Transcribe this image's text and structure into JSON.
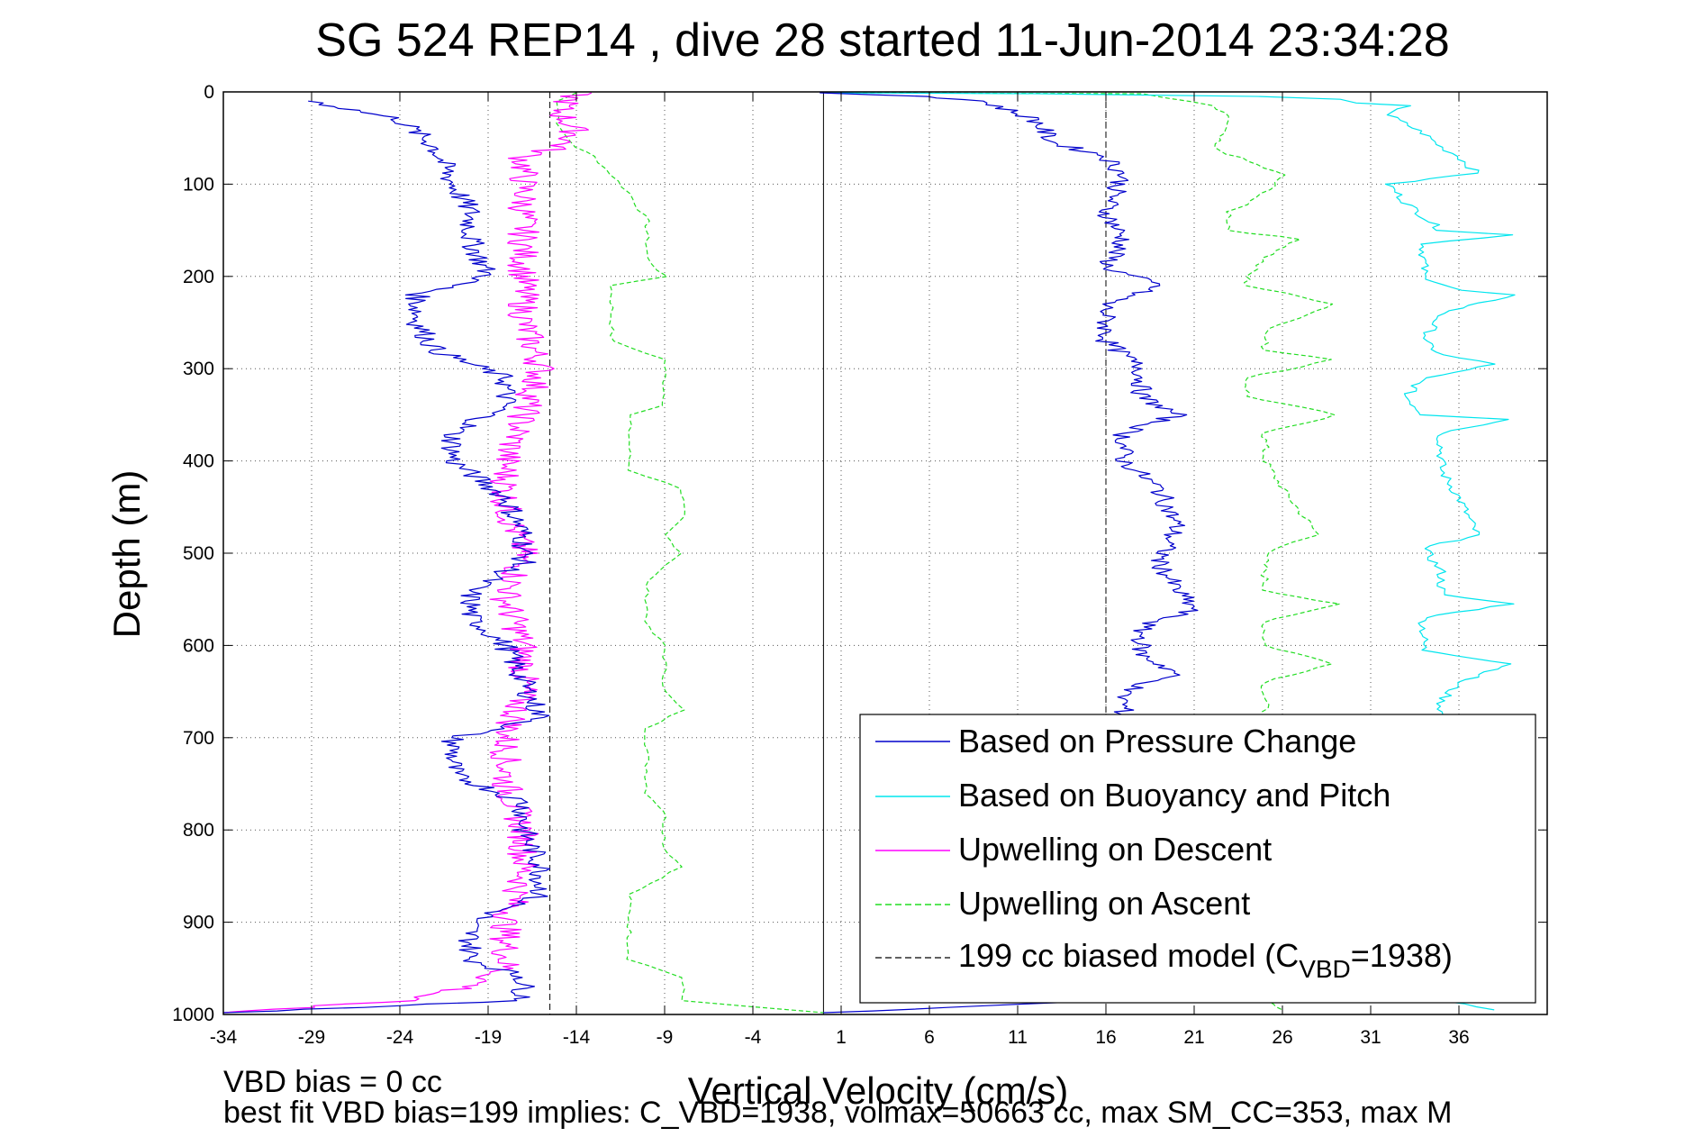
{
  "chart_data": {
    "type": "line",
    "title": "SG 524   REP14  , dive 28 started 11-Jun-2014 23:34:28",
    "xlabel": "Vertical Velocity (cm/s)",
    "ylabel": "Depth (m)",
    "xlim": [
      -34,
      41
    ],
    "ylim": [
      0,
      1000
    ],
    "y_reversed": true,
    "grid": true,
    "legend_position": "bottom-right",
    "xticks": [
      -34,
      -29,
      -24,
      -19,
      -14,
      -9,
      -4,
      1,
      6,
      11,
      16,
      21,
      26,
      31,
      36
    ],
    "xtick_labels": [
      "-34",
      "-29",
      "-24",
      "-19",
      "-14",
      "-9",
      "-4",
      "1",
      "6",
      "11",
      "16",
      "21",
      "26",
      "31",
      "36"
    ],
    "yticks": [
      0,
      100,
      200,
      300,
      400,
      500,
      600,
      700,
      800,
      900,
      1000
    ],
    "ytick_labels": [
      "0",
      "100",
      "200",
      "300",
      "400",
      "500",
      "600",
      "700",
      "800",
      "900",
      "1000"
    ],
    "zero_line_x": 0,
    "notes": [
      "VBD bias = 0 cc",
      "best fit VBD bias=199 implies: C_VBD=1938, volmax=50663 cc, max SM_CC=353, max M"
    ],
    "series": [
      {
        "name": "Based on Pressure Change",
        "color": "#0000cc",
        "style": "solid",
        "descent": [
          [
            -29,
            10
          ],
          [
            -24,
            30
          ],
          [
            -22,
            60
          ],
          [
            -21,
            100
          ],
          [
            -20,
            130
          ],
          [
            -20,
            160
          ],
          [
            -19,
            200
          ],
          [
            -23,
            220
          ],
          [
            -23,
            250
          ],
          [
            -22,
            280
          ],
          [
            -18,
            310
          ],
          [
            -18,
            340
          ],
          [
            -21,
            370
          ],
          [
            -21,
            400
          ],
          [
            -18,
            440
          ],
          [
            -17,
            480
          ],
          [
            -17,
            510
          ],
          [
            -20,
            540
          ],
          [
            -20,
            570
          ],
          [
            -18,
            600
          ],
          [
            -17,
            640
          ],
          [
            -16,
            680
          ],
          [
            -21,
            700
          ],
          [
            -21,
            740
          ],
          [
            -17,
            770
          ],
          [
            -17,
            800
          ],
          [
            -16,
            840
          ],
          [
            -16,
            870
          ],
          [
            -20,
            900
          ],
          [
            -20,
            940
          ],
          [
            -17,
            960
          ],
          [
            -17,
            985
          ],
          [
            -34,
            998
          ]
        ],
        "ascent": [
          [
            0,
            1
          ],
          [
            6,
            5
          ],
          [
            9,
            10
          ],
          [
            12,
            30
          ],
          [
            13,
            55
          ],
          [
            16,
            70
          ],
          [
            17,
            90
          ],
          [
            16,
            130
          ],
          [
            17,
            160
          ],
          [
            16,
            190
          ],
          [
            19,
            210
          ],
          [
            16,
            230
          ],
          [
            16,
            270
          ],
          [
            18,
            300
          ],
          [
            18,
            330
          ],
          [
            20,
            350
          ],
          [
            17,
            370
          ],
          [
            17,
            400
          ],
          [
            19,
            430
          ],
          [
            20,
            470
          ],
          [
            19,
            510
          ],
          [
            20,
            540
          ],
          [
            21,
            560
          ],
          [
            18,
            580
          ],
          [
            18,
            610
          ],
          [
            20,
            630
          ],
          [
            17,
            650
          ],
          [
            17,
            700
          ],
          [
            16,
            985
          ],
          [
            0,
            998
          ]
        ]
      },
      {
        "name": "Based on Buoyancy and Pitch",
        "color": "#00e5ee",
        "style": "solid",
        "ascent": [
          [
            0,
            1
          ],
          [
            12,
            2
          ],
          [
            25,
            5
          ],
          [
            29,
            8
          ],
          [
            30,
            12
          ],
          [
            33,
            15
          ],
          [
            32,
            25
          ],
          [
            34,
            45
          ],
          [
            35,
            60
          ],
          [
            36,
            70
          ],
          [
            37,
            88
          ],
          [
            32,
            100
          ],
          [
            33,
            120
          ],
          [
            35,
            150
          ],
          [
            39,
            155
          ],
          [
            34,
            165
          ],
          [
            34,
            200
          ],
          [
            36,
            215
          ],
          [
            39,
            220
          ],
          [
            35,
            240
          ],
          [
            34,
            270
          ],
          [
            35,
            285
          ],
          [
            38,
            295
          ],
          [
            34,
            310
          ],
          [
            33,
            330
          ],
          [
            34,
            350
          ],
          [
            39,
            355
          ],
          [
            35,
            370
          ],
          [
            35,
            410
          ],
          [
            36,
            440
          ],
          [
            37,
            480
          ],
          [
            34,
            495
          ],
          [
            35,
            520
          ],
          [
            35,
            545
          ],
          [
            39,
            555
          ],
          [
            34,
            570
          ],
          [
            34,
            605
          ],
          [
            39,
            620
          ],
          [
            36,
            640
          ],
          [
            35,
            660
          ],
          [
            35,
            985
          ],
          [
            38,
            995
          ]
        ]
      },
      {
        "name": "Upwelling on Descent",
        "color": "#ff00ff",
        "style": "solid",
        "descent": [
          [
            -14,
            1
          ],
          [
            -15,
            20
          ],
          [
            -14,
            45
          ],
          [
            -15,
            60
          ],
          [
            -17,
            70
          ],
          [
            -17,
            100
          ],
          [
            -17,
            150
          ],
          [
            -17,
            200
          ],
          [
            -17,
            250
          ],
          [
            -16,
            300
          ],
          [
            -17,
            350
          ],
          [
            -18,
            400
          ],
          [
            -18,
            450
          ],
          [
            -17,
            500
          ],
          [
            -18,
            550
          ],
          [
            -17,
            600
          ],
          [
            -17,
            650
          ],
          [
            -18,
            700
          ],
          [
            -18,
            750
          ],
          [
            -17,
            800
          ],
          [
            -17,
            850
          ],
          [
            -18,
            900
          ],
          [
            -18,
            950
          ],
          [
            -20,
            970
          ],
          [
            -24,
            985
          ],
          [
            -34,
            998
          ]
        ]
      },
      {
        "name": "Upwelling on Ascent",
        "color": "#22dd22",
        "style": "dashed",
        "ascent": [
          [
            -14,
            1
          ],
          [
            -15,
            10
          ],
          [
            -15,
            40
          ],
          [
            -14,
            60
          ],
          [
            -13,
            70
          ],
          [
            -12,
            90
          ],
          [
            -11,
            110
          ],
          [
            -10,
            140
          ],
          [
            -10,
            180
          ],
          [
            -9,
            200
          ],
          [
            -12,
            210
          ],
          [
            -12,
            270
          ],
          [
            -9,
            290
          ],
          [
            -9,
            340
          ],
          [
            -11,
            350
          ],
          [
            -11,
            410
          ],
          [
            -8,
            430
          ],
          [
            -8,
            460
          ],
          [
            -9,
            480
          ],
          [
            -8,
            500
          ],
          [
            -10,
            530
          ],
          [
            -10,
            580
          ],
          [
            -9,
            600
          ],
          [
            -9,
            650
          ],
          [
            -8,
            670
          ],
          [
            -10,
            690
          ],
          [
            -10,
            760
          ],
          [
            -9,
            780
          ],
          [
            -9,
            820
          ],
          [
            -8,
            840
          ],
          [
            -11,
            870
          ],
          [
            -11,
            940
          ],
          [
            -8,
            960
          ],
          [
            -8,
            985
          ],
          [
            0,
            998
          ]
        ],
        "ascent_right": [
          [
            0,
            1
          ],
          [
            18,
            2
          ],
          [
            22,
            15
          ],
          [
            23,
            30
          ],
          [
            22,
            60
          ],
          [
            26,
            90
          ],
          [
            25,
            110
          ],
          [
            23,
            130
          ],
          [
            23,
            150
          ],
          [
            27,
            160
          ],
          [
            25,
            180
          ],
          [
            24,
            200
          ],
          [
            24,
            210
          ],
          [
            29,
            230
          ],
          [
            25,
            260
          ],
          [
            25,
            280
          ],
          [
            29,
            290
          ],
          [
            24,
            310
          ],
          [
            24,
            330
          ],
          [
            29,
            350
          ],
          [
            25,
            370
          ],
          [
            25,
            400
          ],
          [
            26,
            430
          ],
          [
            28,
            480
          ],
          [
            25,
            500
          ],
          [
            25,
            540
          ],
          [
            29,
            555
          ],
          [
            25,
            575
          ],
          [
            25,
            600
          ],
          [
            29,
            620
          ],
          [
            25,
            640
          ],
          [
            25,
            985
          ],
          [
            26,
            995
          ]
        ]
      },
      {
        "name": "199 cc biased model (C",
        "name_sub": "VBD",
        "name_suffix": "=1938)",
        "color": "#000000",
        "style": "dashed",
        "x_left": -15.5,
        "x_right": 16
      }
    ]
  }
}
